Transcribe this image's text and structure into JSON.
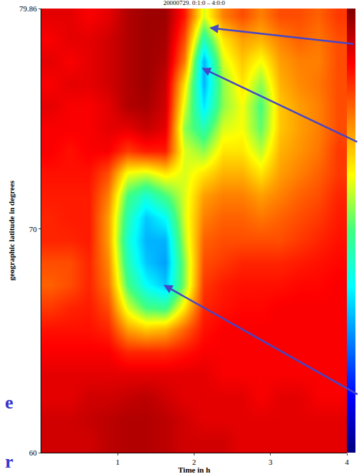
{
  "chart_data": {
    "type": "heatmap",
    "title": "20000729. 0:1:0 – 4:0:0",
    "x_label": "Time in h",
    "y_label": "geographic latitude in degrees",
    "xlim": [
      0,
      4
    ],
    "xticks": [
      1,
      2,
      3,
      4
    ],
    "ylim": [
      60,
      79.86
    ],
    "yticks": [
      60,
      70,
      79.86
    ],
    "colorbar": {
      "range": [
        0,
        1
      ]
    },
    "x": [
      0.125,
      0.375,
      0.625,
      0.875,
      1.125,
      1.375,
      1.625,
      1.875,
      2.125,
      2.375,
      2.625,
      2.875,
      3.125,
      3.375,
      3.625,
      3.875
    ],
    "y": [
      60.5,
      61.5,
      62.5,
      63.5,
      64.5,
      65.5,
      66.5,
      67.5,
      68.5,
      69.5,
      70.5,
      71.5,
      72.5,
      73.5,
      74.5,
      75.5,
      76.5,
      77.5,
      78.5,
      79.5
    ],
    "z": [
      [
        0.92,
        0.92,
        0.92,
        0.94,
        0.95,
        0.95,
        0.94,
        0.92,
        0.92,
        0.92,
        0.9,
        0.9,
        0.9,
        0.9,
        0.9,
        0.9
      ],
      [
        0.92,
        0.92,
        0.93,
        0.94,
        0.95,
        0.95,
        0.94,
        0.92,
        0.9,
        0.9,
        0.9,
        0.9,
        0.9,
        0.9,
        0.9,
        0.9
      ],
      [
        0.9,
        0.9,
        0.92,
        0.92,
        0.93,
        0.94,
        0.92,
        0.9,
        0.9,
        0.9,
        0.9,
        0.88,
        0.9,
        0.9,
        0.88,
        0.88
      ],
      [
        0.9,
        0.9,
        0.9,
        0.9,
        0.9,
        0.9,
        0.9,
        0.9,
        0.9,
        0.88,
        0.88,
        0.88,
        0.88,
        0.88,
        0.88,
        0.88
      ],
      [
        0.88,
        0.88,
        0.88,
        0.88,
        0.84,
        0.84,
        0.84,
        0.86,
        0.88,
        0.88,
        0.88,
        0.88,
        0.88,
        0.88,
        0.88,
        0.88
      ],
      [
        0.86,
        0.86,
        0.86,
        0.84,
        0.72,
        0.68,
        0.7,
        0.78,
        0.86,
        0.88,
        0.88,
        0.88,
        0.88,
        0.88,
        0.88,
        0.88
      ],
      [
        0.82,
        0.84,
        0.85,
        0.8,
        0.6,
        0.5,
        0.48,
        0.65,
        0.84,
        0.86,
        0.87,
        0.87,
        0.88,
        0.88,
        0.88,
        0.88
      ],
      [
        0.78,
        0.8,
        0.84,
        0.76,
        0.5,
        0.38,
        0.32,
        0.55,
        0.82,
        0.85,
        0.86,
        0.86,
        0.86,
        0.87,
        0.87,
        0.88
      ],
      [
        0.8,
        0.8,
        0.84,
        0.74,
        0.45,
        0.32,
        0.28,
        0.55,
        0.8,
        0.82,
        0.84,
        0.84,
        0.84,
        0.85,
        0.86,
        0.87
      ],
      [
        0.84,
        0.84,
        0.85,
        0.72,
        0.42,
        0.3,
        0.3,
        0.58,
        0.78,
        0.8,
        0.8,
        0.8,
        0.8,
        0.82,
        0.84,
        0.86
      ],
      [
        0.84,
        0.85,
        0.85,
        0.72,
        0.45,
        0.32,
        0.38,
        0.6,
        0.75,
        0.78,
        0.78,
        0.76,
        0.78,
        0.8,
        0.82,
        0.85
      ],
      [
        0.85,
        0.85,
        0.85,
        0.75,
        0.5,
        0.42,
        0.5,
        0.6,
        0.72,
        0.75,
        0.75,
        0.72,
        0.75,
        0.78,
        0.8,
        0.84
      ],
      [
        0.86,
        0.86,
        0.86,
        0.8,
        0.62,
        0.6,
        0.65,
        0.6,
        0.65,
        0.7,
        0.7,
        0.65,
        0.72,
        0.75,
        0.78,
        0.82
      ],
      [
        0.88,
        0.86,
        0.88,
        0.88,
        0.82,
        0.85,
        0.85,
        0.6,
        0.55,
        0.65,
        0.65,
        0.58,
        0.7,
        0.73,
        0.76,
        0.82
      ],
      [
        0.88,
        0.88,
        0.88,
        0.9,
        0.9,
        0.93,
        0.9,
        0.55,
        0.45,
        0.6,
        0.62,
        0.52,
        0.68,
        0.72,
        0.75,
        0.8
      ],
      [
        0.9,
        0.88,
        0.88,
        0.9,
        0.95,
        0.96,
        0.92,
        0.6,
        0.35,
        0.55,
        0.62,
        0.5,
        0.68,
        0.72,
        0.75,
        0.8
      ],
      [
        0.88,
        0.9,
        0.9,
        0.92,
        0.95,
        0.97,
        0.93,
        0.65,
        0.3,
        0.55,
        0.65,
        0.55,
        0.7,
        0.74,
        0.76,
        0.8
      ],
      [
        0.9,
        0.88,
        0.9,
        0.92,
        0.95,
        0.97,
        0.95,
        0.75,
        0.3,
        0.6,
        0.68,
        0.62,
        0.72,
        0.75,
        0.75,
        0.8
      ],
      [
        0.88,
        0.9,
        0.9,
        0.92,
        0.95,
        0.97,
        0.96,
        0.8,
        0.45,
        0.65,
        0.72,
        0.7,
        0.75,
        0.78,
        0.76,
        0.8
      ],
      [
        0.9,
        0.9,
        0.88,
        0.9,
        0.95,
        0.97,
        0.97,
        0.85,
        0.6,
        0.75,
        0.8,
        0.75,
        0.8,
        0.8,
        0.78,
        0.82
      ]
    ],
    "arrows": [
      {
        "x": 2.2,
        "y": 79.0
      },
      {
        "x": 2.1,
        "y": 77.2
      },
      {
        "x": 1.6,
        "y": 67.5
      }
    ],
    "annotations": [
      "e",
      "r"
    ]
  }
}
